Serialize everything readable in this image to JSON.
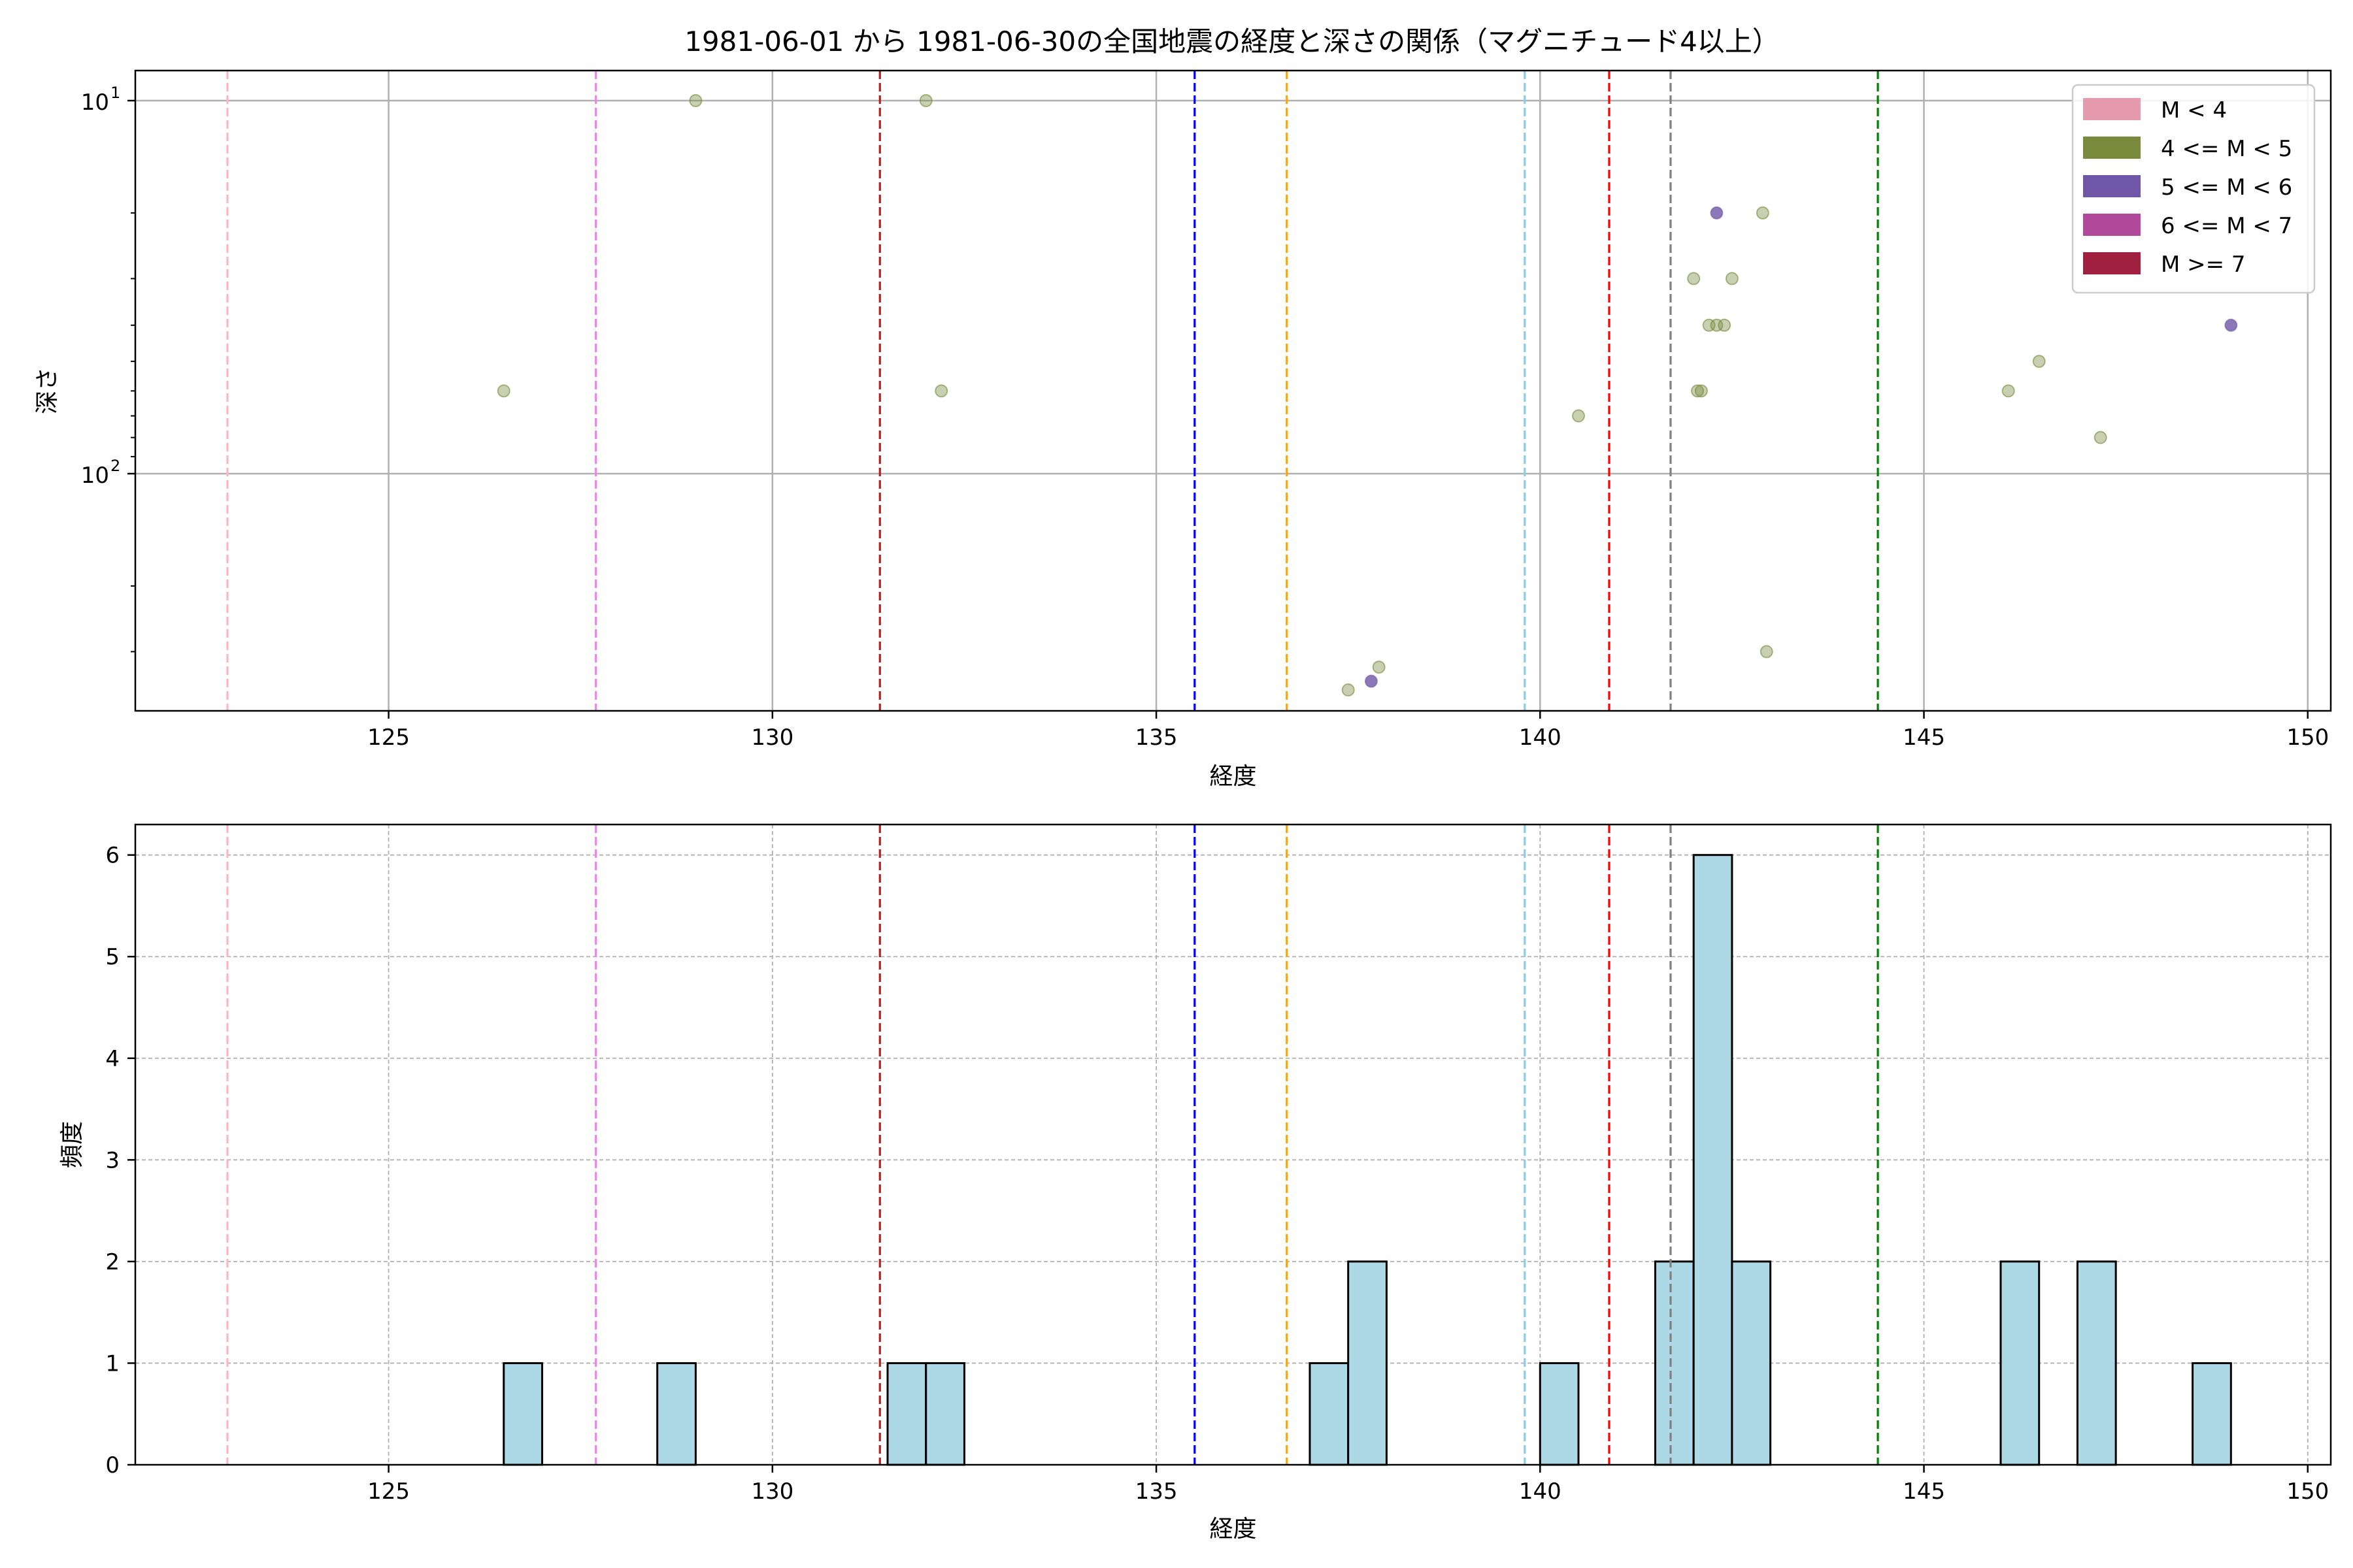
{
  "figure": {
    "title": "1981-06-01 から 1981-06-30の全国地震の経度と深さの関係（マグニチュード4以上）"
  },
  "colors": {
    "m_lt4": "#e69aae",
    "m_4_5": "#798a3c",
    "m_5_6": "#6f56a6",
    "m_6_7": "#b24a9c",
    "m_ge7": "#a0213f",
    "hist_fill": "#add8e6",
    "hist_edge": "#000000"
  },
  "chart_data": [
    {
      "type": "scatter",
      "xlabel": "経度",
      "ylabel": "深さ",
      "xlim": [
        121.7,
        150.3
      ],
      "ylim": [
        10,
        341
      ],
      "yscale": "log",
      "y_inverted": true,
      "xticks": [
        125,
        130,
        135,
        140,
        145,
        150
      ],
      "yticks": [
        {
          "value": 10,
          "base": "10",
          "exp": "1"
        },
        {
          "value": 100,
          "base": "10",
          "exp": "2"
        }
      ],
      "grid": true,
      "legend": {
        "position": "top-right",
        "entries": [
          {
            "label": "M < 4",
            "color_key": "m_lt4"
          },
          {
            "label": "4 <= M < 5",
            "color_key": "m_4_5"
          },
          {
            "label": "5 <= M < 6",
            "color_key": "m_5_6"
          },
          {
            "label": "6 <= M < 7",
            "color_key": "m_6_7"
          },
          {
            "label": "M >= 7",
            "color_key": "m_ge7"
          }
        ]
      },
      "vlines": [
        {
          "x": 122.9,
          "color": "#ffb6c1"
        },
        {
          "x": 127.7,
          "color": "#ee82ee"
        },
        {
          "x": 131.4,
          "color": "#b22222"
        },
        {
          "x": 135.5,
          "color": "#0000ff"
        },
        {
          "x": 136.7,
          "color": "#ffa500"
        },
        {
          "x": 139.8,
          "color": "#87ceeb"
        },
        {
          "x": 140.9,
          "color": "#ff0000"
        },
        {
          "x": 141.7,
          "color": "#808080"
        },
        {
          "x": 144.4,
          "color": "#008000"
        }
      ],
      "series": [
        {
          "name": "4 <= M < 5",
          "color_key": "m_4_5",
          "points": [
            {
              "x": 129.0,
              "y": 10
            },
            {
              "x": 132.0,
              "y": 10
            },
            {
              "x": 126.5,
              "y": 60
            },
            {
              "x": 132.2,
              "y": 60
            },
            {
              "x": 140.5,
              "y": 70
            },
            {
              "x": 142.0,
              "y": 30
            },
            {
              "x": 142.5,
              "y": 30
            },
            {
              "x": 142.9,
              "y": 20
            },
            {
              "x": 142.2,
              "y": 40
            },
            {
              "x": 142.3,
              "y": 40
            },
            {
              "x": 142.4,
              "y": 40
            },
            {
              "x": 142.05,
              "y": 60
            },
            {
              "x": 142.1,
              "y": 60
            },
            {
              "x": 146.1,
              "y": 60
            },
            {
              "x": 146.5,
              "y": 50
            },
            {
              "x": 147.3,
              "y": 80
            },
            {
              "x": 137.5,
              "y": 380
            },
            {
              "x": 137.9,
              "y": 330
            },
            {
              "x": 142.95,
              "y": 300
            }
          ]
        },
        {
          "name": "5 <= M < 6",
          "color_key": "m_5_6",
          "points": [
            {
              "x": 142.3,
              "y": 20
            },
            {
              "x": 149.0,
              "y": 40
            },
            {
              "x": 137.8,
              "y": 360
            }
          ]
        }
      ]
    },
    {
      "type": "bar",
      "xlabel": "経度",
      "ylabel": "頻度",
      "xlim": [
        121.7,
        150.3
      ],
      "ylim": [
        0,
        6.3
      ],
      "xticks": [
        125,
        130,
        135,
        140,
        145,
        150
      ],
      "yticks": [
        0,
        1,
        2,
        3,
        4,
        5,
        6
      ],
      "grid": true,
      "bin_width": 0.5,
      "bins": [
        {
          "x0": 126.5,
          "count": 1
        },
        {
          "x0": 128.5,
          "count": 1
        },
        {
          "x0": 131.5,
          "count": 1
        },
        {
          "x0": 132.0,
          "count": 1
        },
        {
          "x0": 137.0,
          "count": 1
        },
        {
          "x0": 137.5,
          "count": 2
        },
        {
          "x0": 140.0,
          "count": 1
        },
        {
          "x0": 141.5,
          "count": 2
        },
        {
          "x0": 142.0,
          "count": 6
        },
        {
          "x0": 142.5,
          "count": 2
        },
        {
          "x0": 146.0,
          "count": 2
        },
        {
          "x0": 147.0,
          "count": 2
        },
        {
          "x0": 148.5,
          "count": 1
        }
      ]
    }
  ]
}
